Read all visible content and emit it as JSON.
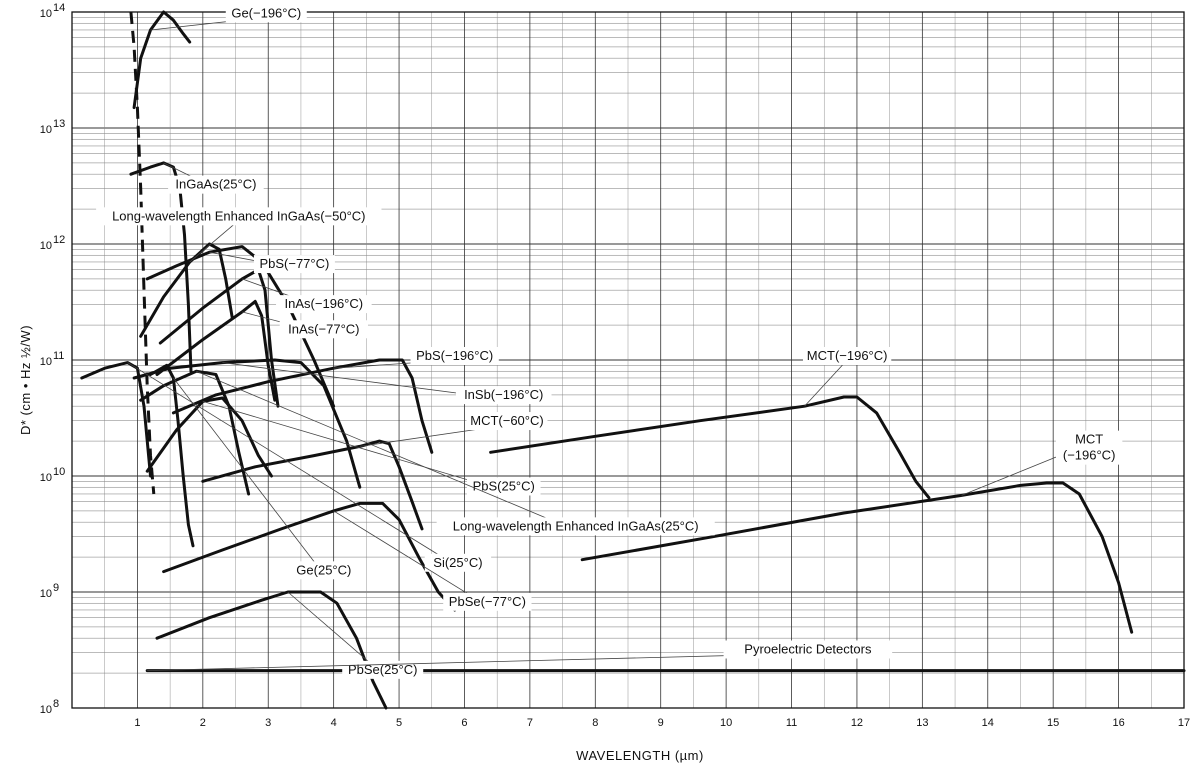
{
  "chart_data": {
    "type": "line",
    "xlabel": "WAVELENGTH (µm)",
    "ylabel": "D* (cm • Hz ½/W)",
    "xlim": [
      0,
      17
    ],
    "ylim": [
      100000000,
      100000000000000
    ],
    "yscale": "log",
    "grid": true,
    "x_ticks": [
      1,
      2,
      3,
      4,
      5,
      6,
      7,
      8,
      9,
      10,
      11,
      12,
      13,
      14,
      15,
      16,
      17
    ],
    "y_ticks": [
      {
        "value": 100000000,
        "base": "10",
        "exp": "8"
      },
      {
        "value": 1000000000,
        "base": "10",
        "exp": "9"
      },
      {
        "value": 10000000000,
        "base": "10",
        "exp": "10"
      },
      {
        "value": 100000000000,
        "base": "10",
        "exp": "11"
      },
      {
        "value": 1000000000000,
        "base": "10",
        "exp": "12"
      },
      {
        "value": 10000000000000,
        "base": "10",
        "exp": "13"
      },
      {
        "value": 100000000000000,
        "base": "10",
        "exp": "14"
      }
    ],
    "series": [
      {
        "name": "Ge(−196°C)",
        "dashed": false,
        "label_xy": [
          2.97,
          90000000000000
        ],
        "points": [
          [
            0.95,
            15000000000000.0
          ],
          [
            1.05,
            40000000000000.0
          ],
          [
            1.2,
            70000000000000.0
          ],
          [
            1.4,
            100000000000000.0
          ],
          [
            1.55,
            85000000000000.0
          ],
          [
            1.7,
            65000000000000.0
          ],
          [
            1.8,
            55000000000000.0
          ]
        ]
      },
      {
        "name": "InGaAs(25°C)",
        "dashed": false,
        "label_xy": [
          2.2,
          3000000000000.0
        ],
        "points": [
          [
            0.9,
            4000000000000.0
          ],
          [
            1.2,
            4600000000000.0
          ],
          [
            1.4,
            5000000000000.0
          ],
          [
            1.55,
            4600000000000.0
          ],
          [
            1.65,
            3000000000000.0
          ],
          [
            1.72,
            1200000000000.0
          ],
          [
            1.78,
            300000000000.0
          ],
          [
            1.82,
            80000000000.0
          ]
        ]
      },
      {
        "name": "Long-wavelength Enhanced InGaAs(−50°C)",
        "dashed": false,
        "label_xy": [
          2.55,
          1600000000000.0
        ],
        "points": [
          [
            1.05,
            160000000000.0
          ],
          [
            1.4,
            350000000000.0
          ],
          [
            1.8,
            700000000000.0
          ],
          [
            2.1,
            1000000000000.0
          ],
          [
            2.25,
            900000000000.0
          ],
          [
            2.35,
            500000000000.0
          ],
          [
            2.45,
            230000000000.0
          ]
        ]
      },
      {
        "name": "PbS(−77°C)",
        "dashed": false,
        "label_xy": [
          3.4,
          620000000000.0
        ],
        "points": [
          [
            1.15,
            500000000000.0
          ],
          [
            1.6,
            650000000000.0
          ],
          [
            2.1,
            850000000000.0
          ],
          [
            2.6,
            950000000000.0
          ],
          [
            2.9,
            700000000000.0
          ],
          [
            3.3,
            300000000000.0
          ],
          [
            3.7,
            100000000000.0
          ],
          [
            4.0,
            40000000000.0
          ]
        ]
      },
      {
        "name": "InAs(−196°C)",
        "dashed": false,
        "label_xy": [
          3.85,
          280000000000.0
        ],
        "points": [
          [
            1.35,
            140000000000.0
          ],
          [
            2.0,
            280000000000.0
          ],
          [
            2.6,
            500000000000.0
          ],
          [
            2.85,
            600000000000.0
          ],
          [
            2.95,
            400000000000.0
          ],
          [
            3.05,
            100000000000.0
          ],
          [
            3.15,
            40000000000.0
          ]
        ]
      },
      {
        "name": "InAs(−77°C)",
        "dashed": false,
        "label_xy": [
          3.85,
          170000000000.0
        ],
        "points": [
          [
            1.3,
            75000000000.0
          ],
          [
            2.0,
            150000000000.0
          ],
          [
            2.6,
            260000000000.0
          ],
          [
            2.8,
            320000000000.0
          ],
          [
            2.9,
            240000000000.0
          ],
          [
            3.0,
            90000000000.0
          ],
          [
            3.1,
            45000000000.0
          ]
        ]
      },
      {
        "name": "PbS(−196°C)",
        "dashed": false,
        "label_xy": [
          5.85,
          100000000000.0
        ],
        "points": [
          [
            1.55,
            35000000000.0
          ],
          [
            2.2,
            50000000000.0
          ],
          [
            3.0,
            65000000000.0
          ],
          [
            4.0,
            85000000000.0
          ],
          [
            4.7,
            100000000000.0
          ],
          [
            5.05,
            100000000000.0
          ],
          [
            5.2,
            70000000000.0
          ],
          [
            5.35,
            30000000000.0
          ],
          [
            5.5,
            16000000000.0
          ]
        ]
      },
      {
        "name": "InSb(−196°C)",
        "dashed": false,
        "label_xy": [
          6.6,
          46000000000.0
        ],
        "points": [
          [
            0.95,
            70000000000.0
          ],
          [
            1.5,
            85000000000.0
          ],
          [
            2.3,
            95000000000.0
          ],
          [
            3.1,
            100000000000.0
          ],
          [
            3.5,
            95000000000.0
          ],
          [
            3.85,
            60000000000.0
          ],
          [
            4.2,
            20000000000.0
          ],
          [
            4.4,
            8000000000.0
          ]
        ]
      },
      {
        "name": "MCT(−60°C)",
        "dashed": false,
        "label_xy": [
          6.65,
          27500000000.0
        ],
        "points": [
          [
            2.0,
            9000000000.0
          ],
          [
            2.8,
            12000000000.0
          ],
          [
            3.7,
            15000000000.0
          ],
          [
            4.4,
            18000000000.0
          ],
          [
            4.7,
            20000000000.0
          ],
          [
            4.85,
            19000000000.0
          ],
          [
            5.0,
            12000000000.0
          ],
          [
            5.2,
            6000000000.0
          ],
          [
            5.35,
            3500000000.0
          ]
        ]
      },
      {
        "name": "PbS(25°C)",
        "dashed": false,
        "label_xy": [
          6.6,
          7500000000.0
        ],
        "points": [
          [
            1.15,
            11000000000.0
          ],
          [
            1.6,
            25000000000.0
          ],
          [
            2.0,
            44000000000.0
          ],
          [
            2.3,
            47000000000.0
          ],
          [
            2.6,
            30000000000.0
          ],
          [
            2.85,
            15000000000.0
          ],
          [
            3.05,
            10000000000.0
          ]
        ]
      },
      {
        "name": "Long-wavelength Enhanced InGaAs(25°C)",
        "dashed": false,
        "label_xy": [
          7.7,
          3400000000.0
        ],
        "points": [
          [
            1.05,
            45000000000.0
          ],
          [
            1.4,
            60000000000.0
          ],
          [
            1.9,
            80000000000.0
          ],
          [
            2.2,
            75000000000.0
          ],
          [
            2.4,
            40000000000.0
          ],
          [
            2.55,
            16000000000.0
          ],
          [
            2.7,
            7000000000.0
          ]
        ]
      },
      {
        "name": "Si(25°C)",
        "dashed": false,
        "label_xy": [
          5.9,
          1650000000.0
        ],
        "points": [
          [
            0.15,
            70000000000.0
          ],
          [
            0.5,
            85000000000.0
          ],
          [
            0.85,
            95000000000.0
          ],
          [
            1.0,
            85000000000.0
          ],
          [
            1.1,
            40000000000.0
          ],
          [
            1.2,
            10000000000.0
          ]
        ]
      },
      {
        "name": "Ge(25°C)",
        "dashed": false,
        "label_xy": [
          3.85,
          1420000000.0
        ],
        "points": [
          [
            1.2,
            75000000000.0
          ],
          [
            1.45,
            90000000000.0
          ],
          [
            1.55,
            70000000000.0
          ],
          [
            1.62,
            30000000000.0
          ],
          [
            1.7,
            10000000000.0
          ],
          [
            1.78,
            3800000000.0
          ],
          [
            1.85,
            2500000000.0
          ]
        ]
      },
      {
        "name": "PbSe(−77°C)",
        "dashed": false,
        "label_xy": [
          6.35,
          760000000.0
        ],
        "points": [
          [
            1.4,
            1500000000.0
          ],
          [
            2.3,
            2300000000.0
          ],
          [
            3.2,
            3500000000.0
          ],
          [
            4.0,
            5000000000.0
          ],
          [
            4.4,
            5800000000.0
          ],
          [
            4.75,
            5800000000.0
          ],
          [
            5.0,
            4200000000.0
          ],
          [
            5.3,
            2000000000.0
          ],
          [
            5.6,
            1000000000.0
          ],
          [
            5.85,
            700000000.0
          ]
        ]
      },
      {
        "name": "PbSe(25°C)",
        "dashed": false,
        "label_xy": [
          4.75,
          197000000.0
        ],
        "points": [
          [
            1.3,
            400000000.0
          ],
          [
            2.1,
            600000000.0
          ],
          [
            2.9,
            850000000.0
          ],
          [
            3.3,
            1000000000.0
          ],
          [
            3.8,
            1000000000.0
          ],
          [
            4.05,
            800000000.0
          ],
          [
            4.35,
            400000000.0
          ],
          [
            4.6,
            170000000.0
          ],
          [
            4.8,
            100000000.0
          ]
        ]
      },
      {
        "name": "MCT(−196°C)",
        "dashed": false,
        "label_xy": [
          11.85,
          100000000000.0
        ],
        "points": [
          [
            6.4,
            16000000000.0
          ],
          [
            8.0,
            22000000000.0
          ],
          [
            9.6,
            30000000000.0
          ],
          [
            11.2,
            40000000000.0
          ],
          [
            11.8,
            48000000000.0
          ],
          [
            12.0,
            48000000000.0
          ],
          [
            12.3,
            35000000000.0
          ],
          [
            12.65,
            16000000000.0
          ],
          [
            12.9,
            9000000000.0
          ],
          [
            13.1,
            6500000000.0
          ]
        ]
      },
      {
        "name": "MCT\n(−196°C)",
        "dashed": false,
        "label_xy": [
          15.55,
          19000000000.0
        ],
        "points": [
          [
            7.8,
            1900000000.0
          ],
          [
            9.8,
            3000000000.0
          ],
          [
            11.8,
            4800000000.0
          ],
          [
            13.6,
            6800000000.0
          ],
          [
            14.5,
            8300000000.0
          ],
          [
            14.9,
            8700000000.0
          ],
          [
            15.15,
            8700000000.0
          ],
          [
            15.4,
            7000000000.0
          ],
          [
            15.75,
            3000000000.0
          ],
          [
            16.0,
            1200000000.0
          ],
          [
            16.2,
            450000000.0
          ]
        ]
      },
      {
        "name": "Pyroelectric Detectors",
        "dashed": false,
        "label_xy": [
          11.25,
          295000000.0
        ],
        "points": [
          [
            1.15,
            210000000.0
          ],
          [
            17.0,
            210000000.0
          ]
        ]
      },
      {
        "name": "",
        "dashed": true,
        "points": [
          [
            0.9,
            100000000000000.0
          ],
          [
            0.95,
            50000000000000.0
          ],
          [
            1.0,
            15000000000000.0
          ],
          [
            1.05,
            3000000000000.0
          ],
          [
            1.1,
            400000000000.0
          ],
          [
            1.15,
            60000000000.0
          ],
          [
            1.2,
            15000000000.0
          ],
          [
            1.25,
            7000000000.0
          ]
        ]
      }
    ]
  }
}
